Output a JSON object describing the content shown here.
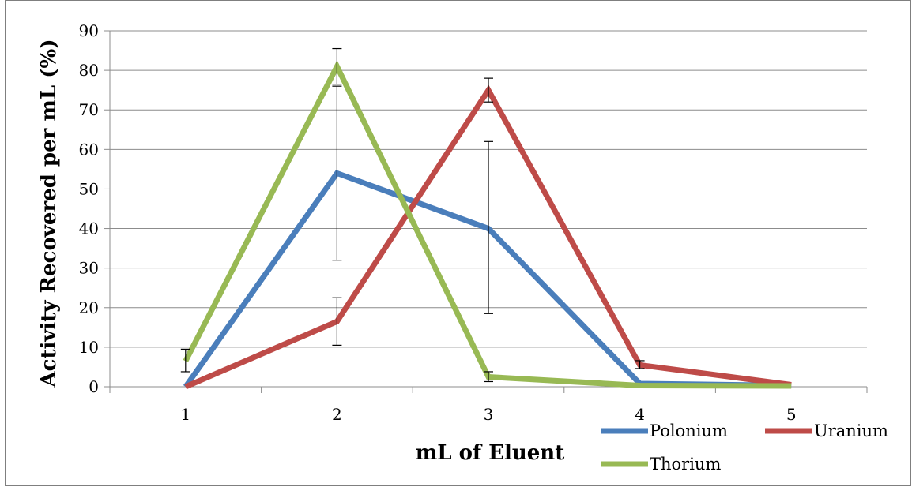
{
  "chart_data": {
    "type": "line",
    "title": "",
    "xlabel": "mL of Eluent",
    "ylabel": "Activity Recovered per mL  (%)",
    "categories": [
      "1",
      "2",
      "3",
      "4",
      "5"
    ],
    "ylim": [
      0,
      90
    ],
    "yticks": [
      "0",
      "10",
      "20",
      "30",
      "40",
      "50",
      "60",
      "70",
      "80",
      "90"
    ],
    "grid": true,
    "legend_position": "bottom-right",
    "series": [
      {
        "name": "Polonium",
        "color": "#4a7ebb",
        "values": [
          0,
          54,
          40,
          0.8,
          0.3
        ],
        "error_low": [
          null,
          32,
          18.5,
          null,
          null
        ],
        "error_high": [
          null,
          76,
          62,
          null,
          null
        ]
      },
      {
        "name": "Uranium",
        "color": "#be4b48",
        "values": [
          0,
          16.5,
          75,
          5.5,
          0.5
        ],
        "error_low": [
          null,
          10.5,
          72,
          4.6,
          null
        ],
        "error_high": [
          null,
          22.5,
          78,
          6.6,
          null
        ]
      },
      {
        "name": "Thorium",
        "color": "#98b954",
        "values": [
          6.5,
          81,
          2.5,
          0.3,
          0.2
        ],
        "error_low": [
          3.8,
          76.5,
          1.3,
          null,
          null
        ],
        "error_high": [
          9.5,
          85.5,
          3.8,
          null,
          null
        ]
      }
    ]
  }
}
